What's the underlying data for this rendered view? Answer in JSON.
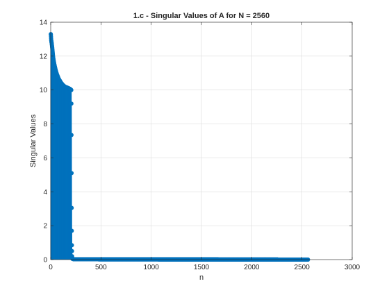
{
  "chart_data": {
    "type": "stem",
    "title": "1.c - Singular Values of A for N = 2560",
    "xlabel": "n",
    "ylabel": "Singular Values",
    "xlim": [
      0,
      3000
    ],
    "ylim": [
      0,
      14
    ],
    "xticks": [
      0,
      500,
      1000,
      1500,
      2000,
      2500,
      3000
    ],
    "yticks": [
      0,
      2,
      4,
      6,
      8,
      10,
      12,
      14
    ],
    "grid": true,
    "series_color": "#0072bd",
    "num_points": 2560,
    "points": [
      [
        1,
        13.3
      ],
      [
        2,
        13.25
      ],
      [
        5,
        12.95
      ],
      [
        10,
        12.75
      ],
      [
        15,
        12.5
      ],
      [
        20,
        12.2
      ],
      [
        25,
        11.9
      ],
      [
        30,
        11.7
      ],
      [
        40,
        11.4
      ],
      [
        50,
        11.15
      ],
      [
        60,
        10.95
      ],
      [
        70,
        10.8
      ],
      [
        80,
        10.65
      ],
      [
        90,
        10.55
      ],
      [
        100,
        10.45
      ],
      [
        120,
        10.3
      ],
      [
        140,
        10.2
      ],
      [
        160,
        10.15
      ],
      [
        180,
        10.1
      ],
      [
        195,
        10.05
      ],
      [
        205,
        10.0
      ],
      [
        206,
        9.2
      ],
      [
        207,
        7.35
      ],
      [
        208,
        5.1
      ],
      [
        209,
        3.05
      ],
      [
        210,
        1.7
      ],
      [
        211,
        0.85
      ],
      [
        212,
        0.5
      ],
      [
        213,
        0.2
      ],
      [
        215,
        0.05
      ],
      [
        230,
        0.02
      ],
      [
        2560,
        0.0
      ]
    ]
  }
}
